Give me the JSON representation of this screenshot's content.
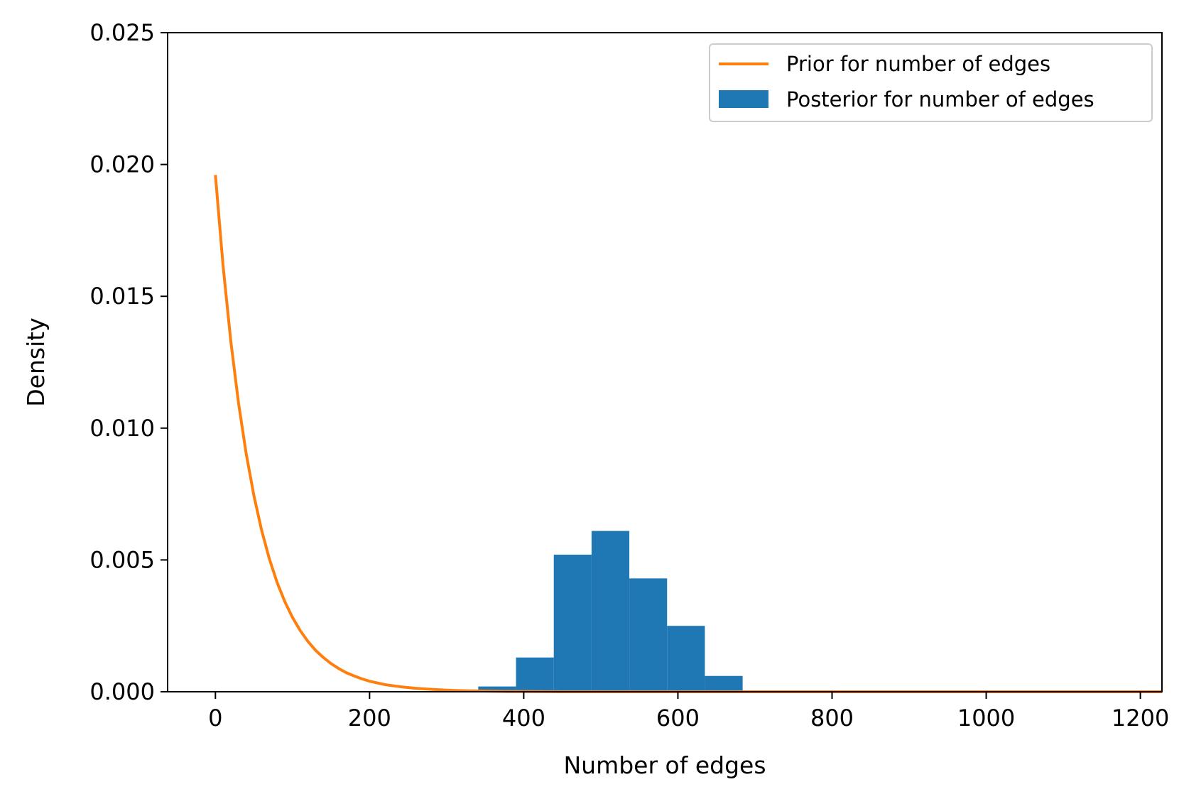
{
  "chart_data": {
    "type": "bar",
    "xlabel": "Number of edges",
    "ylabel": "Density",
    "xlim": [
      -62,
      1228
    ],
    "ylim": [
      0,
      0.025
    ],
    "x_ticks": [
      0,
      200,
      400,
      600,
      800,
      1000,
      1200
    ],
    "y_ticks": [
      0,
      0.005,
      0.01,
      0.015,
      0.02,
      0.025
    ],
    "x_tick_labels": [
      "0",
      "200",
      "400",
      "600",
      "800",
      "1000",
      "1200"
    ],
    "y_tick_labels": [
      "0.000",
      "0.005",
      "0.010",
      "0.015",
      "0.020",
      "0.025"
    ],
    "grid": false,
    "legend_position": "top-right",
    "series": [
      {
        "name": "Prior for number of edges",
        "kind": "line",
        "color": "#ff7f0e",
        "x": [
          0,
          10,
          20,
          30,
          40,
          50,
          60,
          70,
          80,
          90,
          100,
          110,
          120,
          130,
          140,
          150,
          160,
          170,
          180,
          190,
          200,
          220,
          240,
          260,
          280,
          300,
          320,
          340,
          360,
          380,
          400,
          450,
          500,
          600,
          700,
          800,
          900,
          1000,
          1100,
          1228
        ],
        "y": [
          0.0196,
          0.01614,
          0.01329,
          0.01095,
          0.00902,
          0.00743,
          0.00612,
          0.00504,
          0.00415,
          0.00342,
          0.00282,
          0.00232,
          0.00191,
          0.00157,
          0.0013,
          0.00107,
          0.00088,
          0.00072,
          0.0006,
          0.00049,
          0.0004,
          0.00027,
          0.00019,
          0.00013,
          9e-05,
          6e-05,
          4e-05,
          3e-05,
          2e-05,
          1e-05,
          1e-05,
          0,
          0,
          0,
          0,
          0,
          0,
          0,
          0,
          0
        ]
      },
      {
        "name": "Posterior for number of edges",
        "kind": "histogram",
        "color": "#1f77b4",
        "bin_edges": [
          341,
          390,
          439,
          488,
          537,
          586,
          635,
          684
        ],
        "values": [
          0.0002,
          0.0013,
          0.0052,
          0.0061,
          0.0043,
          0.0025,
          0.0006
        ]
      }
    ]
  }
}
